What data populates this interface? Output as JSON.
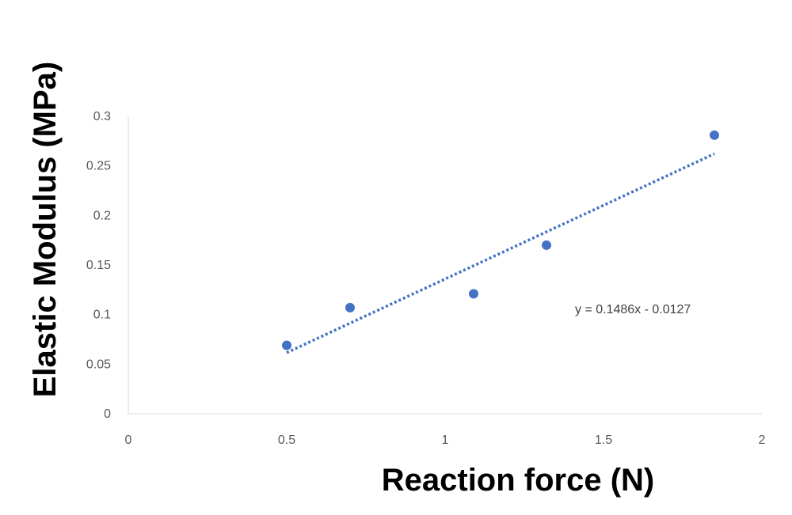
{
  "chart_data": {
    "type": "scatter",
    "title": "",
    "xlabel": "Reaction force (N)",
    "ylabel": "Elastic Modulus (MPa)",
    "xlim": [
      0,
      2
    ],
    "ylim": [
      0,
      0.3
    ],
    "x_ticks": [
      "0",
      "0.5",
      "1",
      "1.5",
      "2"
    ],
    "y_ticks": [
      "0",
      "0.05",
      "0.1",
      "0.15",
      "0.2",
      "0.25",
      "0.3"
    ],
    "grid": false,
    "legend": "none",
    "series": [
      {
        "x": [
          0.5,
          0.7,
          1.09,
          1.32,
          1.85
        ],
        "y": [
          0.069,
          0.107,
          0.121,
          0.17,
          0.281
        ],
        "color": "#4472C4"
      }
    ],
    "trendline": {
      "type": "linear",
      "slope": 0.1486,
      "intercept": -0.0127,
      "x_range": [
        0.5,
        1.85
      ],
      "style": "dotted",
      "color": "#4472C4",
      "equation_label": "y = 0.1486x - 0.0127"
    }
  }
}
